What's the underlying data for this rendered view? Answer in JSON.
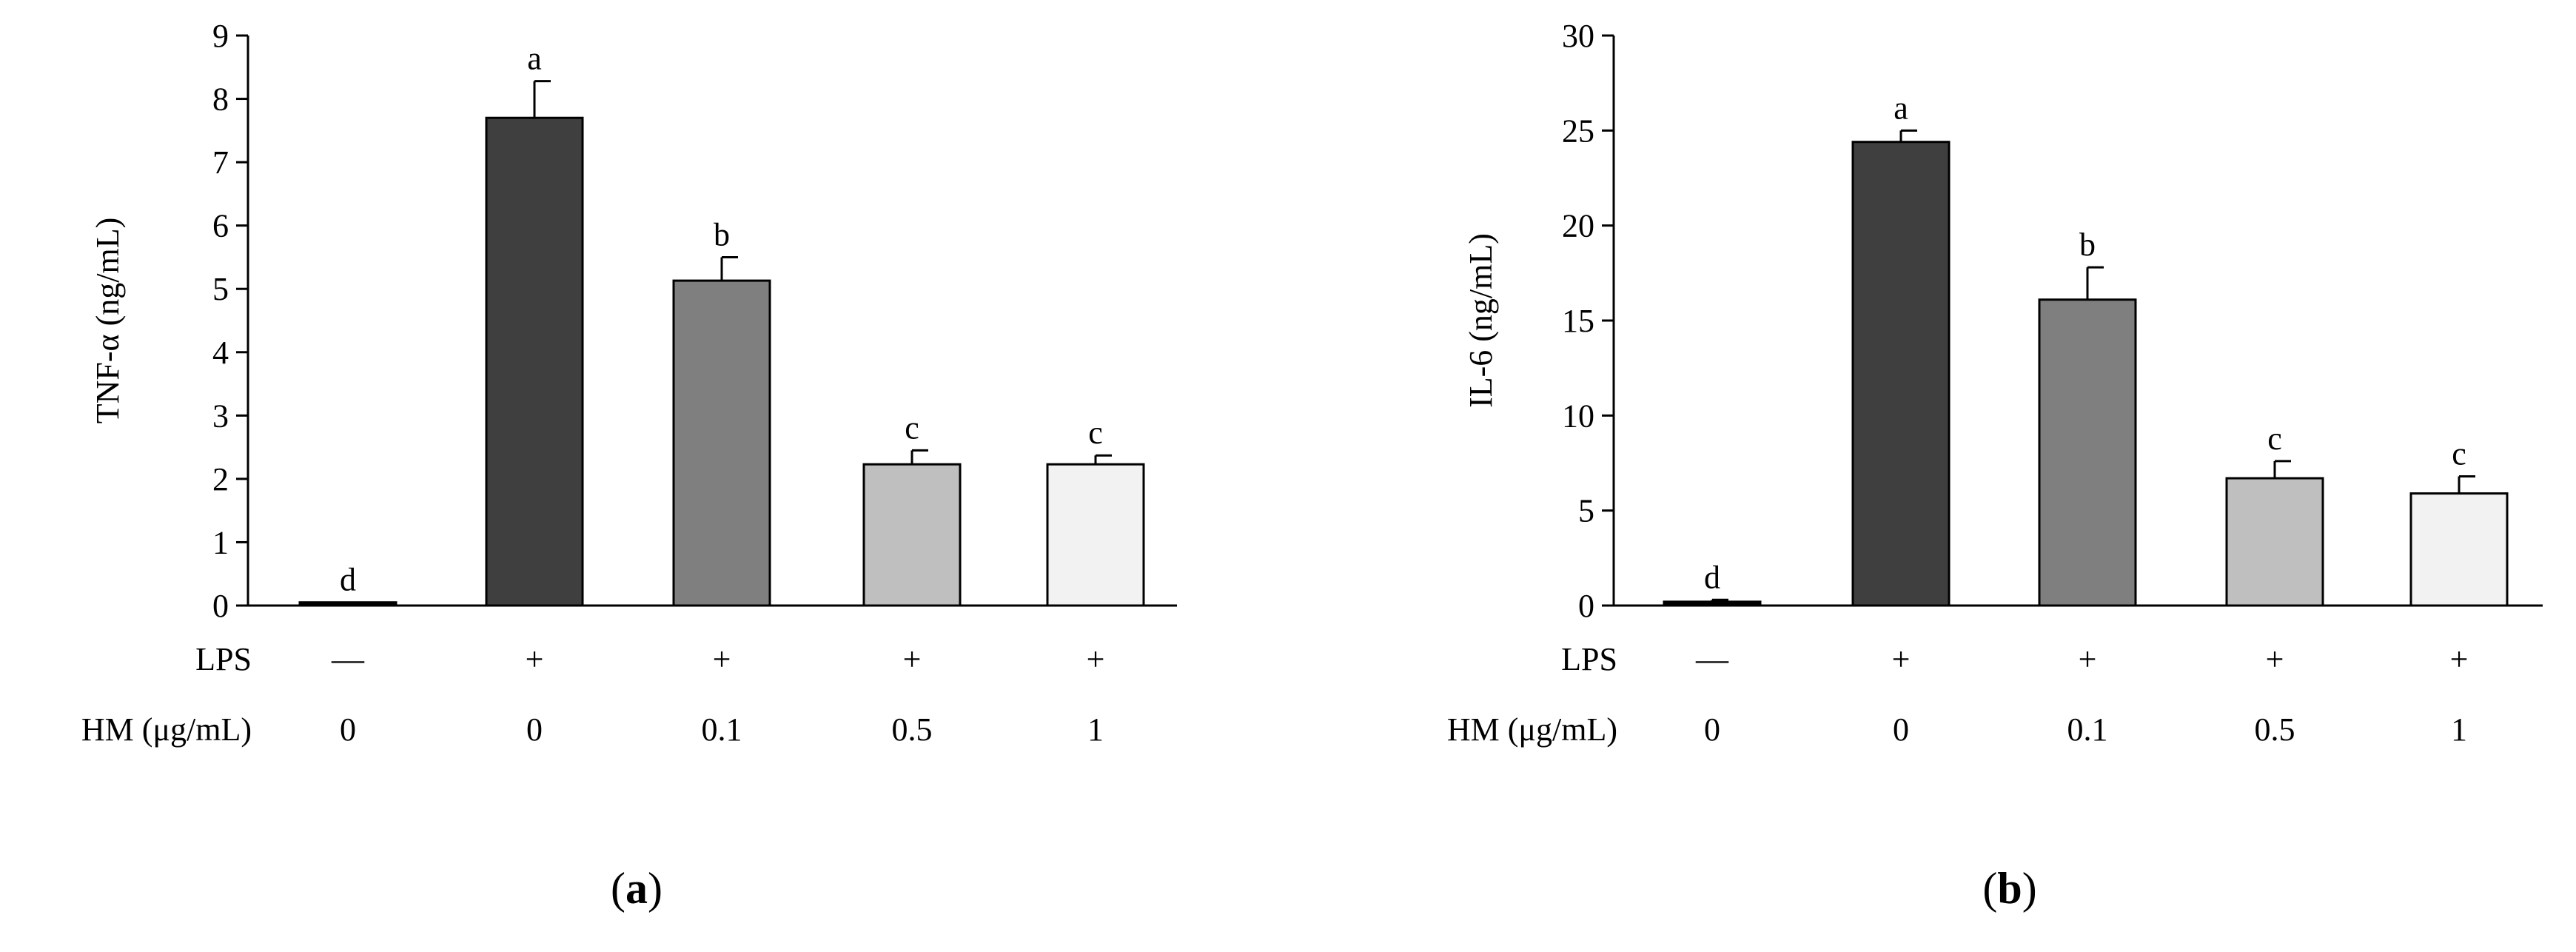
{
  "chart_data": [
    {
      "type": "bar",
      "panel_label": "a",
      "ylabel": "TNF-α (ng/mL)",
      "ylim": [
        0,
        9
      ],
      "yticks": [
        0,
        1,
        2,
        3,
        4,
        5,
        6,
        7,
        8,
        9
      ],
      "row_labels": [
        "LPS",
        "HM (μg/mL)"
      ],
      "categories": [
        {
          "lps": "—",
          "hm": "0"
        },
        {
          "lps": "+",
          "hm": "0"
        },
        {
          "lps": "+",
          "hm": "0.1"
        },
        {
          "lps": "+",
          "hm": "0.5"
        },
        {
          "lps": "+",
          "hm": "1"
        }
      ],
      "values": [
        0.05,
        7.7,
        5.13,
        2.23,
        2.23
      ],
      "errors": [
        0.0,
        0.58,
        0.37,
        0.22,
        0.14
      ],
      "significance": [
        "d",
        "a",
        "b",
        "c",
        "c"
      ],
      "colors": [
        "#000000",
        "#3f3f3f",
        "#7f7f7f",
        "#bfbfbf",
        "#f2f2f2"
      ]
    },
    {
      "type": "bar",
      "panel_label": "b",
      "ylabel": "IL-6 (ng/mL)",
      "ylim": [
        0,
        30
      ],
      "yticks": [
        0,
        5,
        10,
        15,
        20,
        25,
        30
      ],
      "row_labels": [
        "LPS",
        "HM (μg/mL)"
      ],
      "categories": [
        {
          "lps": "—",
          "hm": "0"
        },
        {
          "lps": "+",
          "hm": "0"
        },
        {
          "lps": "+",
          "hm": "0.1"
        },
        {
          "lps": "+",
          "hm": "0.5"
        },
        {
          "lps": "+",
          "hm": "1"
        }
      ],
      "values": [
        0.2,
        24.4,
        16.1,
        6.7,
        5.9
      ],
      "errors": [
        0.1,
        0.6,
        1.7,
        0.9,
        0.9
      ],
      "significance": [
        "d",
        "a",
        "b",
        "c",
        "c"
      ],
      "colors": [
        "#000000",
        "#3f3f3f",
        "#7f7f7f",
        "#bfbfbf",
        "#f2f2f2"
      ]
    }
  ]
}
